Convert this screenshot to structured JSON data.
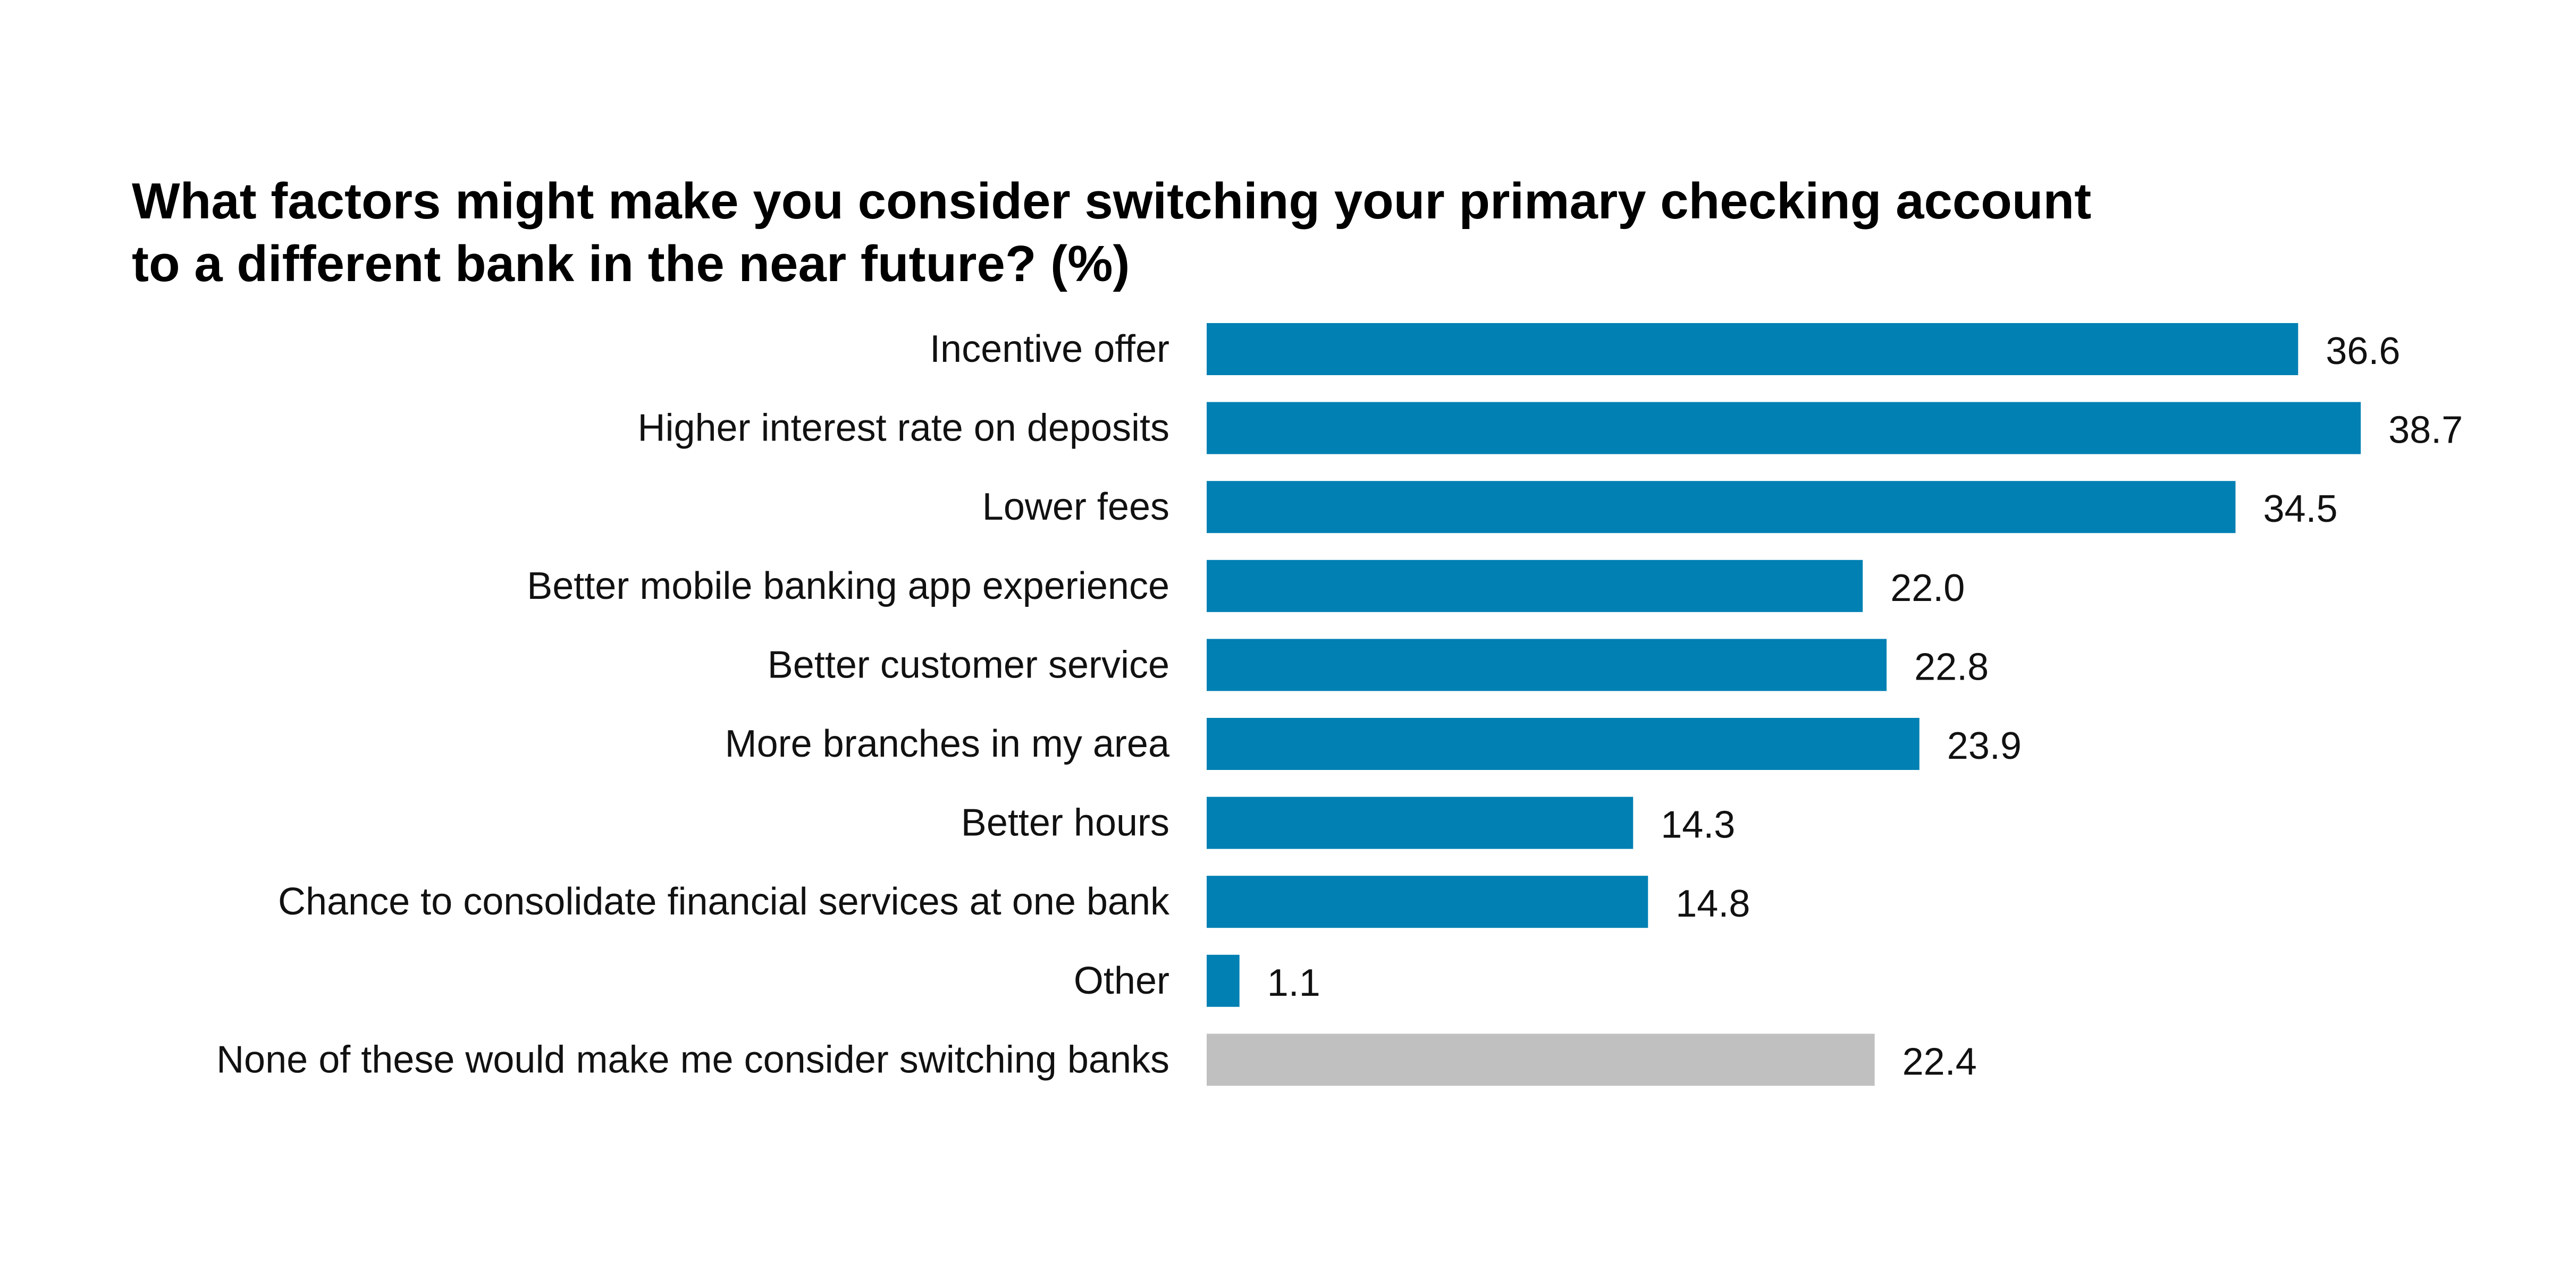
{
  "title_lines": [
    "What factors might make you consider switching your primary checking account",
    "to a different bank in the near future? (%)"
  ],
  "colors": {
    "primary_bar": "#0080B3",
    "neutral_bar": "#C0C0C0",
    "text": "#111111"
  },
  "chart_data": {
    "type": "bar",
    "orientation": "horizontal",
    "title": "What factors might make you consider switching your primary checking account to a different bank in the near future? (%)",
    "categories": [
      "Incentive offer",
      "Higher interest rate on deposits",
      "Lower fees",
      "Better mobile banking app experience",
      "Better customer service",
      "More branches in my area",
      "Better hours",
      "Chance to consolidate financial services at one bank",
      "Other",
      "None of these would make me consider switching banks"
    ],
    "values": [
      36.6,
      38.7,
      34.5,
      22.0,
      22.8,
      23.9,
      14.3,
      14.8,
      1.1,
      22.4
    ],
    "value_labels": [
      "36.6",
      "38.7",
      "34.5",
      "22.0",
      "22.8",
      "23.9",
      "14.3",
      "14.8",
      "1.1",
      "22.4"
    ],
    "bar_colors": [
      "primary",
      "primary",
      "primary",
      "primary",
      "primary",
      "primary",
      "primary",
      "primary",
      "primary",
      "neutral"
    ],
    "xlabel": "",
    "ylabel": "",
    "xlim": [
      0,
      38.7
    ],
    "grid": false,
    "legend": "none",
    "data_labels": "right of bar"
  }
}
